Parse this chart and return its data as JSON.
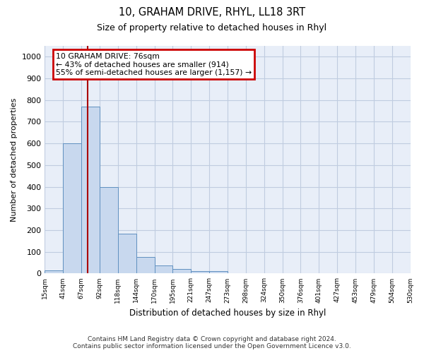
{
  "title1": "10, GRAHAM DRIVE, RHYL, LL18 3RT",
  "title2": "Size of property relative to detached houses in Rhyl",
  "xlabel": "Distribution of detached houses by size in Rhyl",
  "ylabel": "Number of detached properties",
  "bin_labels": [
    "15sqm",
    "41sqm",
    "67sqm",
    "92sqm",
    "118sqm",
    "144sqm",
    "170sqm",
    "195sqm",
    "221sqm",
    "247sqm",
    "273sqm",
    "298sqm",
    "324sqm",
    "350sqm",
    "376sqm",
    "401sqm",
    "427sqm",
    "453sqm",
    "479sqm",
    "504sqm",
    "530sqm"
  ],
  "bar_values": [
    15,
    600,
    770,
    400,
    185,
    75,
    37,
    20,
    12,
    10,
    0,
    0,
    0,
    0,
    0,
    0,
    0,
    0,
    0,
    0
  ],
  "bar_color": "#c8d8ee",
  "bar_edge_color": "#6090c0",
  "vline_color": "#aa0000",
  "annotation_text": "10 GRAHAM DRIVE: 76sqm\n← 43% of detached houses are smaller (914)\n55% of semi-detached houses are larger (1,157) →",
  "annotation_box_color": "#cc0000",
  "ylim": [
    0,
    1050
  ],
  "yticks": [
    0,
    100,
    200,
    300,
    400,
    500,
    600,
    700,
    800,
    900,
    1000
  ],
  "footer": "Contains HM Land Registry data © Crown copyright and database right 2024.\nContains public sector information licensed under the Open Government Licence v3.0.",
  "background_color": "#ffffff",
  "plot_bg_color": "#e8eef8",
  "grid_color": "#c0cce0"
}
